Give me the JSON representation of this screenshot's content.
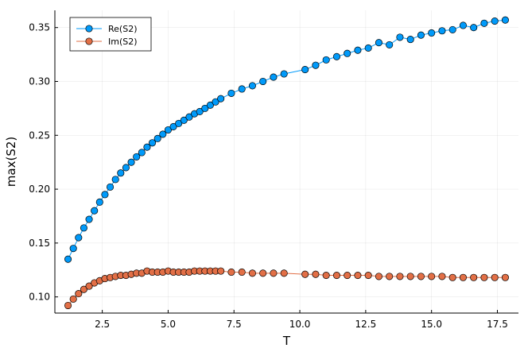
{
  "chart_data": {
    "type": "scatter",
    "xlabel": "T",
    "ylabel": "max(S2)",
    "xlim": [
      0.7,
      18.3
    ],
    "ylim": [
      0.085,
      0.366
    ],
    "xticks": [
      2.5,
      5.0,
      7.5,
      10.0,
      12.5,
      15.0,
      17.5
    ],
    "xtick_labels": [
      "2.5",
      "5.0",
      "7.5",
      "10.0",
      "12.5",
      "15.0",
      "17.5"
    ],
    "yticks": [
      0.1,
      0.15,
      0.2,
      0.25,
      0.3,
      0.35
    ],
    "ytick_labels": [
      "0.10",
      "0.15",
      "0.20",
      "0.25",
      "0.30",
      "0.35"
    ],
    "grid": true,
    "legend_position": "top-left",
    "series": [
      {
        "name": "Re(S2)",
        "color": "#009AFA",
        "marker": "circle",
        "line": true,
        "x": [
          1.2,
          1.4,
          1.6,
          1.8,
          2.0,
          2.2,
          2.4,
          2.6,
          2.8,
          3.0,
          3.2,
          3.4,
          3.6,
          3.8,
          4.0,
          4.2,
          4.4,
          4.6,
          4.8,
          5.0,
          5.2,
          5.4,
          5.6,
          5.8,
          6.0,
          6.2,
          6.4,
          6.6,
          6.8,
          7.0,
          7.4,
          7.8,
          8.2,
          8.6,
          9.0,
          9.4,
          10.2,
          10.6,
          11.0,
          11.4,
          11.8,
          12.2,
          12.6,
          13.0,
          13.4,
          13.8,
          14.2,
          14.6,
          15.0,
          15.4,
          15.8,
          16.2,
          16.6,
          17.0,
          17.4,
          17.8
        ],
        "y": [
          0.135,
          0.145,
          0.155,
          0.164,
          0.172,
          0.18,
          0.188,
          0.195,
          0.202,
          0.209,
          0.215,
          0.22,
          0.225,
          0.23,
          0.234,
          0.239,
          0.243,
          0.247,
          0.251,
          0.255,
          0.258,
          0.261,
          0.264,
          0.267,
          0.27,
          0.272,
          0.275,
          0.278,
          0.281,
          0.284,
          0.289,
          0.293,
          0.296,
          0.3,
          0.304,
          0.307,
          0.311,
          0.315,
          0.32,
          0.323,
          0.326,
          0.329,
          0.331,
          0.336,
          0.334,
          0.341,
          0.339,
          0.343,
          0.345,
          0.347,
          0.348,
          0.352,
          0.35,
          0.354,
          0.356,
          0.357
        ]
      },
      {
        "name": "Im(S2)",
        "color": "#E26F46",
        "marker": "circle",
        "line": true,
        "x": [
          1.2,
          1.4,
          1.6,
          1.8,
          2.0,
          2.2,
          2.4,
          2.6,
          2.8,
          3.0,
          3.2,
          3.4,
          3.6,
          3.8,
          4.0,
          4.2,
          4.4,
          4.6,
          4.8,
          5.0,
          5.2,
          5.4,
          5.6,
          5.8,
          6.0,
          6.2,
          6.4,
          6.6,
          6.8,
          7.0,
          7.4,
          7.8,
          8.2,
          8.6,
          9.0,
          9.4,
          10.2,
          10.6,
          11.0,
          11.4,
          11.8,
          12.2,
          12.6,
          13.0,
          13.4,
          13.8,
          14.2,
          14.6,
          15.0,
          15.4,
          15.8,
          16.2,
          16.6,
          17.0,
          17.4,
          17.8
        ],
        "y": [
          0.092,
          0.098,
          0.103,
          0.107,
          0.11,
          0.113,
          0.115,
          0.117,
          0.118,
          0.119,
          0.12,
          0.12,
          0.121,
          0.122,
          0.122,
          0.124,
          0.123,
          0.123,
          0.123,
          0.124,
          0.123,
          0.123,
          0.123,
          0.123,
          0.124,
          0.124,
          0.124,
          0.124,
          0.124,
          0.124,
          0.123,
          0.123,
          0.122,
          0.122,
          0.122,
          0.122,
          0.121,
          0.121,
          0.12,
          0.12,
          0.12,
          0.12,
          0.12,
          0.119,
          0.119,
          0.119,
          0.119,
          0.119,
          0.119,
          0.119,
          0.118,
          0.118,
          0.118,
          0.118,
          0.118,
          0.118
        ]
      }
    ]
  }
}
